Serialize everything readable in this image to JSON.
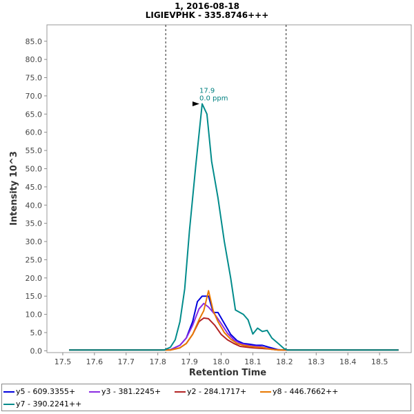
{
  "chart_data": {
    "type": "line",
    "title": "1, 2016-08-18",
    "subtitle": "LIGIEVPHK - 335.8746+++",
    "xlabel": "Retention Time",
    "ylabel": "Intensity 10^3",
    "xlim": [
      17.45,
      18.6
    ],
    "ylim": [
      -0.5,
      89.5
    ],
    "xticks": [
      "17.5",
      "17.6",
      "17.7",
      "17.8",
      "17.9",
      "18.0",
      "18.1",
      "18.2",
      "18.3",
      "18.4",
      "18.5"
    ],
    "yticks": [
      "0.0",
      "5.0",
      "10.0",
      "15.0",
      "20.0",
      "25.0",
      "30.0",
      "35.0",
      "40.0",
      "45.0",
      "50.0",
      "55.0",
      "60.0",
      "65.0",
      "70.0",
      "75.0",
      "80.0",
      "85.0"
    ],
    "boundaries": [
      17.825,
      18.205
    ],
    "annotation": {
      "x": 17.94,
      "y": 67.8,
      "line1": "17.9",
      "line2": "0.0 ppm",
      "color": "#008080"
    },
    "series": [
      {
        "name": "y5 - 609.3355+",
        "color": "#0000dd",
        "points": [
          [
            17.52,
            0.2
          ],
          [
            17.8,
            0.2
          ],
          [
            17.84,
            0.3
          ],
          [
            17.87,
            1.5
          ],
          [
            17.89,
            3.5
          ],
          [
            17.91,
            8
          ],
          [
            17.925,
            13.5
          ],
          [
            17.94,
            15
          ],
          [
            17.96,
            15
          ],
          [
            17.975,
            10.5
          ],
          [
            17.99,
            10.5
          ],
          [
            18.01,
            7.5
          ],
          [
            18.03,
            4.5
          ],
          [
            18.05,
            2.8
          ],
          [
            18.07,
            2
          ],
          [
            18.09,
            1.8
          ],
          [
            18.11,
            1.5
          ],
          [
            18.13,
            1.5
          ],
          [
            18.15,
            1
          ],
          [
            18.18,
            0.3
          ],
          [
            18.2,
            0.2
          ],
          [
            18.56,
            0.2
          ]
        ]
      },
      {
        "name": "y3 - 381.2245+",
        "color": "#8a2be2",
        "points": [
          [
            17.52,
            0.2
          ],
          [
            17.8,
            0.2
          ],
          [
            17.84,
            0.3
          ],
          [
            17.87,
            1.5
          ],
          [
            17.89,
            3.5
          ],
          [
            17.91,
            7
          ],
          [
            17.93,
            11.5
          ],
          [
            17.945,
            13
          ],
          [
            17.96,
            12
          ],
          [
            17.98,
            10
          ],
          [
            18.0,
            7.5
          ],
          [
            18.02,
            4.8
          ],
          [
            18.04,
            3
          ],
          [
            18.06,
            2
          ],
          [
            18.08,
            1.6
          ],
          [
            18.1,
            1.3
          ],
          [
            18.12,
            1.2
          ],
          [
            18.14,
            0.8
          ],
          [
            18.17,
            0.3
          ],
          [
            18.2,
            0.2
          ],
          [
            18.56,
            0.2
          ]
        ]
      },
      {
        "name": "y2 - 284.1717+",
        "color": "#b22222",
        "points": [
          [
            17.52,
            0.2
          ],
          [
            17.8,
            0.2
          ],
          [
            17.84,
            0.2
          ],
          [
            17.87,
            0.8
          ],
          [
            17.89,
            2
          ],
          [
            17.91,
            4.5
          ],
          [
            17.93,
            8
          ],
          [
            17.945,
            9
          ],
          [
            17.96,
            8.8
          ],
          [
            17.98,
            7
          ],
          [
            18.0,
            4.5
          ],
          [
            18.02,
            3
          ],
          [
            18.04,
            2
          ],
          [
            18.06,
            1.2
          ],
          [
            18.08,
            1
          ],
          [
            18.1,
            0.8
          ],
          [
            18.12,
            0.7
          ],
          [
            18.15,
            0.5
          ],
          [
            18.18,
            0.2
          ],
          [
            18.56,
            0.2
          ]
        ]
      },
      {
        "name": "y8 - 446.7662++",
        "color": "#e87800",
        "points": [
          [
            17.52,
            0.2
          ],
          [
            17.8,
            0.2
          ],
          [
            17.84,
            0.2
          ],
          [
            17.87,
            0.8
          ],
          [
            17.89,
            2
          ],
          [
            17.91,
            4.5
          ],
          [
            17.93,
            8.5
          ],
          [
            17.945,
            11
          ],
          [
            17.96,
            16.5
          ],
          [
            17.975,
            11
          ],
          [
            17.99,
            8
          ],
          [
            18.01,
            5
          ],
          [
            18.03,
            3.2
          ],
          [
            18.05,
            2
          ],
          [
            18.07,
            1.5
          ],
          [
            18.09,
            1.2
          ],
          [
            18.11,
            1
          ],
          [
            18.13,
            0.9
          ],
          [
            18.15,
            0.5
          ],
          [
            18.18,
            0.2
          ],
          [
            18.56,
            0.2
          ]
        ]
      },
      {
        "name": "y7 - 390.2241++",
        "color": "#008b8b",
        "points": [
          [
            17.52,
            0.2
          ],
          [
            17.82,
            0.2
          ],
          [
            17.84,
            1
          ],
          [
            17.855,
            3
          ],
          [
            17.87,
            8
          ],
          [
            17.885,
            17
          ],
          [
            17.9,
            33
          ],
          [
            17.92,
            51
          ],
          [
            17.94,
            67.8
          ],
          [
            17.955,
            65
          ],
          [
            17.97,
            52
          ],
          [
            17.99,
            42
          ],
          [
            18.01,
            30
          ],
          [
            18.03,
            20
          ],
          [
            18.045,
            11.2
          ],
          [
            18.07,
            10
          ],
          [
            18.085,
            8.5
          ],
          [
            18.1,
            4.6
          ],
          [
            18.115,
            6.2
          ],
          [
            18.13,
            5.3
          ],
          [
            18.145,
            5.6
          ],
          [
            18.16,
            3.5
          ],
          [
            18.18,
            2
          ],
          [
            18.2,
            0.5
          ],
          [
            18.21,
            0.2
          ],
          [
            18.56,
            0.2
          ]
        ]
      }
    ]
  }
}
